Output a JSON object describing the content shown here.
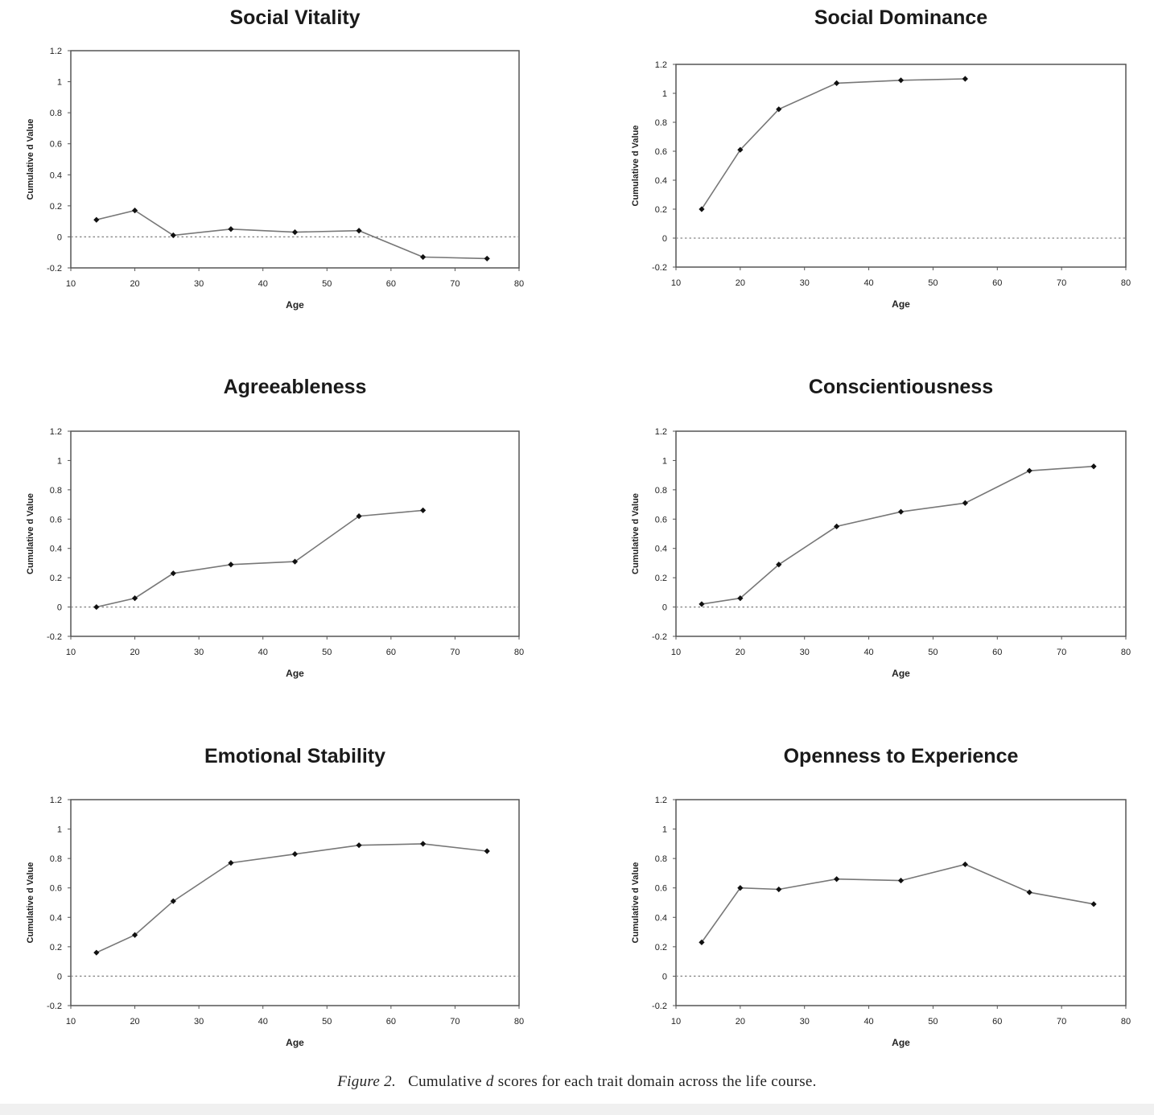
{
  "figure": {
    "caption_label": "Figure 2.",
    "caption_pre": "Cumulative ",
    "caption_var": "d",
    "caption_post": " scores for each trait domain across the life course."
  },
  "colors": {
    "line": "#777777",
    "marker": "#111111",
    "frame": "#555555",
    "zero_line": "#888888"
  },
  "chart_data": [
    {
      "type": "line",
      "title": "Social Vitality",
      "xlabel": "Age",
      "ylabel": "Cumulative d Value",
      "xlim": [
        10,
        80
      ],
      "ylim": [
        -0.2,
        1.2
      ],
      "xticks": [
        "10",
        "20",
        "30",
        "40",
        "50",
        "60",
        "70",
        "80"
      ],
      "yticks": [
        "-0.2",
        "0",
        "0.2",
        "0.4",
        "0.6",
        "0.8",
        "1",
        "1.2"
      ],
      "x": [
        14,
        20,
        26,
        35,
        45,
        55,
        65,
        75
      ],
      "y": [
        0.11,
        0.17,
        0.01,
        0.05,
        0.03,
        0.04,
        -0.13,
        -0.14
      ]
    },
    {
      "type": "line",
      "title": "Social Dominance",
      "xlabel": "Age",
      "ylabel": "Cumulative d Value",
      "xlim": [
        10,
        80
      ],
      "ylim": [
        -0.2,
        1.2
      ],
      "xticks": [
        "10",
        "20",
        "30",
        "40",
        "50",
        "60",
        "70",
        "80"
      ],
      "yticks": [
        "-0.2",
        "0",
        "0.2",
        "0.4",
        "0.6",
        "0.8",
        "1",
        "1.2"
      ],
      "x": [
        14,
        20,
        26,
        35,
        45,
        55
      ],
      "y": [
        0.2,
        0.61,
        0.89,
        1.07,
        1.09,
        1.1
      ]
    },
    {
      "type": "line",
      "title": "Agreeableness",
      "xlabel": "Age",
      "ylabel": "Cumulative d Value",
      "xlim": [
        10,
        80
      ],
      "ylim": [
        -0.2,
        1.2
      ],
      "xticks": [
        "10",
        "20",
        "30",
        "40",
        "50",
        "60",
        "70",
        "80"
      ],
      "yticks": [
        "-0.2",
        "0",
        "0.2",
        "0.4",
        "0.6",
        "0.8",
        "1",
        "1.2"
      ],
      "x": [
        14,
        20,
        26,
        35,
        45,
        55,
        65
      ],
      "y": [
        0.0,
        0.06,
        0.23,
        0.29,
        0.31,
        0.62,
        0.66
      ]
    },
    {
      "type": "line",
      "title": "Conscientiousness",
      "xlabel": "Age",
      "ylabel": "Cumulative d Value",
      "xlim": [
        10,
        80
      ],
      "ylim": [
        -0.2,
        1.2
      ],
      "xticks": [
        "10",
        "20",
        "30",
        "40",
        "50",
        "60",
        "70",
        "80"
      ],
      "yticks": [
        "-0.2",
        "0",
        "0.2",
        "0.4",
        "0.6",
        "0.8",
        "1",
        "1.2"
      ],
      "x": [
        14,
        20,
        26,
        35,
        45,
        55,
        65,
        75
      ],
      "y": [
        0.02,
        0.06,
        0.29,
        0.55,
        0.65,
        0.71,
        0.93,
        0.96
      ]
    },
    {
      "type": "line",
      "title": "Emotional Stability",
      "xlabel": "Age",
      "ylabel": "Cumulative d Value",
      "xlim": [
        10,
        80
      ],
      "ylim": [
        -0.2,
        1.2
      ],
      "xticks": [
        "10",
        "20",
        "30",
        "40",
        "50",
        "60",
        "70",
        "80"
      ],
      "yticks": [
        "-0.2",
        "0",
        "0.2",
        "0.4",
        "0.6",
        "0.8",
        "1",
        "1.2"
      ],
      "x": [
        14,
        20,
        26,
        35,
        45,
        55,
        65,
        75
      ],
      "y": [
        0.16,
        0.28,
        0.51,
        0.77,
        0.83,
        0.89,
        0.9,
        0.85
      ]
    },
    {
      "type": "line",
      "title": "Openness to Experience",
      "xlabel": "Age",
      "ylabel": "Cumulative d Value",
      "xlim": [
        10,
        80
      ],
      "ylim": [
        -0.2,
        1.2
      ],
      "xticks": [
        "10",
        "20",
        "30",
        "40",
        "50",
        "60",
        "70",
        "80"
      ],
      "yticks": [
        "-0.2",
        "0",
        "0.2",
        "0.4",
        "0.6",
        "0.8",
        "1",
        "1.2"
      ],
      "x": [
        14,
        20,
        26,
        35,
        45,
        55,
        65,
        75
      ],
      "y": [
        0.23,
        0.6,
        0.59,
        0.66,
        0.65,
        0.76,
        0.57,
        0.49
      ]
    }
  ]
}
